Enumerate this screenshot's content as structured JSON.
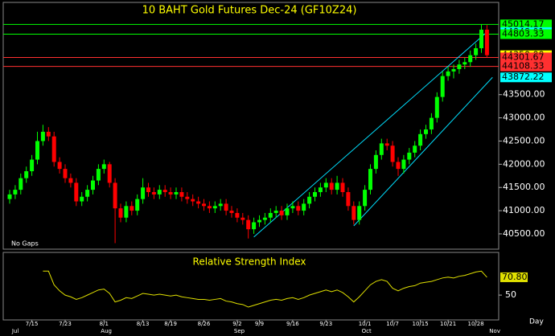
{
  "chart_data": {
    "type": "candlestick",
    "title": "10 BAHT Gold Futures Dec-24 (GF10Z24)",
    "note": "No Gaps",
    "period": "Day",
    "up_color": "#00ff00",
    "down_color": "#ff0000",
    "ylim": [
      40170,
      45470
    ],
    "yticks": [
      {
        "value": 40500,
        "label": "40500.00"
      },
      {
        "value": 41000,
        "label": "41000.00"
      },
      {
        "value": 41500,
        "label": "41500.00"
      },
      {
        "value": 42000,
        "label": "42000.00"
      },
      {
        "value": 42500,
        "label": "42500.00"
      },
      {
        "value": 43000,
        "label": "43000.00"
      },
      {
        "value": 43500,
        "label": "43500.00"
      }
    ],
    "categories": [
      null,
      null,
      null,
      null,
      "7/15",
      null,
      null,
      null,
      null,
      null,
      "7/23",
      null,
      null,
      null,
      null,
      null,
      null,
      "8/1",
      null,
      null,
      null,
      null,
      null,
      null,
      "8/13",
      null,
      null,
      null,
      null,
      "8/19",
      null,
      null,
      null,
      null,
      null,
      "8/26",
      null,
      null,
      null,
      null,
      null,
      "9/2",
      null,
      null,
      null,
      "9/9",
      null,
      null,
      null,
      null,
      null,
      "9/16",
      null,
      null,
      null,
      null,
      null,
      "9/23",
      null,
      null,
      null,
      null,
      null,
      null,
      "10/1",
      null,
      null,
      null,
      null,
      "10/7",
      null,
      null,
      null,
      null,
      "10/15",
      null,
      null,
      null,
      null,
      "10/21",
      null,
      null,
      null,
      null,
      "10/28",
      null,
      null
    ],
    "month_labels": [
      {
        "label": "Jul",
        "index": 1
      },
      {
        "label": "Aug",
        "index": 17
      },
      {
        "label": "Sep",
        "index": 41
      },
      {
        "label": "Oct",
        "index": 64
      },
      {
        "label": "Nov",
        "index": 87
      }
    ],
    "ohlc": [
      [
        41250,
        41450,
        41150,
        41350
      ],
      [
        41350,
        41550,
        41250,
        41450
      ],
      [
        41450,
        41800,
        41350,
        41700
      ],
      [
        41700,
        41950,
        41600,
        41850
      ],
      [
        41850,
        42200,
        41750,
        42100
      ],
      [
        42100,
        42700,
        42000,
        42500
      ],
      [
        42500,
        42850,
        42400,
        42700
      ],
      [
        42700,
        42800,
        42500,
        42600
      ],
      [
        42600,
        42700,
        41950,
        42050
      ],
      [
        42050,
        42150,
        41800,
        41900
      ],
      [
        41900,
        42000,
        41600,
        41700
      ],
      [
        41700,
        41800,
        41500,
        41600
      ],
      [
        41600,
        41700,
        41100,
        41200
      ],
      [
        41200,
        41400,
        41100,
        41300
      ],
      [
        41300,
        41550,
        41200,
        41450
      ],
      [
        41450,
        41750,
        41350,
        41650
      ],
      [
        41650,
        42000,
        41550,
        41900
      ],
      [
        41900,
        42100,
        41800,
        42000
      ],
      [
        42000,
        42050,
        41500,
        41600
      ],
      [
        41600,
        41700,
        40300,
        41050
      ],
      [
        41050,
        41150,
        40750,
        40850
      ],
      [
        40850,
        41200,
        40750,
        41100
      ],
      [
        41100,
        41200,
        40900,
        41000
      ],
      [
        41000,
        41350,
        40900,
        41250
      ],
      [
        41250,
        41700,
        41150,
        41500
      ],
      [
        41500,
        41600,
        41300,
        41400
      ],
      [
        41400,
        41500,
        41250,
        41350
      ],
      [
        41350,
        41550,
        41250,
        41450
      ],
      [
        41450,
        41550,
        41300,
        41400
      ],
      [
        41400,
        41500,
        41250,
        41350
      ],
      [
        41350,
        41500,
        41250,
        41400
      ],
      [
        41400,
        41500,
        41200,
        41300
      ],
      [
        41300,
        41400,
        41150,
        41250
      ],
      [
        41250,
        41350,
        41100,
        41200
      ],
      [
        41200,
        41300,
        41050,
        41150
      ],
      [
        41150,
        41250,
        41000,
        41100
      ],
      [
        41100,
        41200,
        40950,
        41050
      ],
      [
        41050,
        41200,
        40950,
        41100
      ],
      [
        41100,
        41250,
        41000,
        41150
      ],
      [
        41150,
        41250,
        40900,
        41000
      ],
      [
        41000,
        41100,
        40850,
        40950
      ],
      [
        40950,
        41050,
        40750,
        40850
      ],
      [
        40850,
        40950,
        40700,
        40800
      ],
      [
        40800,
        40900,
        40400,
        40600
      ],
      [
        40600,
        40850,
        40500,
        40750
      ],
      [
        40750,
        40900,
        40650,
        40800
      ],
      [
        40800,
        40950,
        40700,
        40850
      ],
      [
        40850,
        41050,
        40750,
        40950
      ],
      [
        40950,
        41100,
        40850,
        41000
      ],
      [
        41000,
        41100,
        40800,
        40900
      ],
      [
        40900,
        41150,
        40800,
        41050
      ],
      [
        41050,
        41200,
        40950,
        41100
      ],
      [
        41100,
        41200,
        40900,
        41000
      ],
      [
        41000,
        41250,
        40900,
        41150
      ],
      [
        41150,
        41400,
        41050,
        41300
      ],
      [
        41300,
        41500,
        41200,
        41400
      ],
      [
        41400,
        41600,
        41300,
        41500
      ],
      [
        41500,
        41700,
        41400,
        41600
      ],
      [
        41600,
        41700,
        41350,
        41450
      ],
      [
        41450,
        41750,
        41350,
        41600
      ],
      [
        41600,
        41700,
        41300,
        41400
      ],
      [
        41400,
        41500,
        41000,
        41100
      ],
      [
        41100,
        41200,
        40700,
        40800
      ],
      [
        40800,
        41200,
        40700,
        41100
      ],
      [
        41100,
        41550,
        41000,
        41450
      ],
      [
        41450,
        42000,
        41350,
        41900
      ],
      [
        41900,
        42300,
        41800,
        42200
      ],
      [
        42200,
        42550,
        42100,
        42450
      ],
      [
        42450,
        42550,
        42300,
        42400
      ],
      [
        42400,
        42500,
        41950,
        42050
      ],
      [
        42050,
        42150,
        41750,
        41900
      ],
      [
        41900,
        42200,
        41800,
        42100
      ],
      [
        42100,
        42350,
        42000,
        42250
      ],
      [
        42250,
        42500,
        42150,
        42400
      ],
      [
        42400,
        42750,
        42300,
        42650
      ],
      [
        42650,
        42850,
        42550,
        42750
      ],
      [
        42750,
        43100,
        42650,
        43000
      ],
      [
        43000,
        43550,
        42900,
        43450
      ],
      [
        43450,
        44000,
        43350,
        43900
      ],
      [
        43900,
        44100,
        43800,
        44000
      ],
      [
        44000,
        44150,
        43850,
        44050
      ],
      [
        44050,
        44250,
        43950,
        44150
      ],
      [
        44150,
        44300,
        44050,
        44200
      ],
      [
        44200,
        44450,
        44100,
        44350
      ],
      [
        44350,
        44600,
        44250,
        44500
      ],
      [
        44500,
        45014.17,
        44400,
        44900
      ],
      [
        44900,
        45000,
        44301.67,
        44350
      ]
    ],
    "price_levels": [
      {
        "value": 45014.17,
        "label": "45014.17",
        "color": "#00ff00",
        "line": true
      },
      {
        "value": 44848.01,
        "label": "44848.01",
        "color": "#00ffff",
        "line": false
      },
      {
        "value": 44803.33,
        "label": "44803.33",
        "color": "#00ff00",
        "line": true
      },
      {
        "value": 44350,
        "label": "44350.00",
        "color": "#ffff00",
        "line": false
      },
      {
        "value": 44301.67,
        "label": "44301.67",
        "color": "#ff3030",
        "line": true
      },
      {
        "value": 44108.33,
        "label": "44108.33",
        "color": "#ff3030",
        "line": true
      },
      {
        "value": 43872.22,
        "label": "43872.22",
        "color": "#00ffff",
        "line": false
      }
    ],
    "trend_lines": [
      {
        "color": "#00e0ff",
        "start": [
          44,
          40431
        ],
        "end": [
          86,
          44848.01
        ]
      },
      {
        "color": "#00e0ff",
        "start": [
          62,
          40672
        ],
        "end": [
          87,
          43872.22
        ]
      }
    ],
    "rsi": {
      "title": "Relative Strength Index",
      "color": "#e0e000",
      "ylim": [
        21,
        98
      ],
      "yticks": [
        50
      ],
      "values": [
        null,
        null,
        null,
        null,
        null,
        null,
        78,
        78,
        62,
        55,
        50,
        48,
        45,
        47,
        50,
        53,
        56,
        57,
        52,
        42,
        44,
        47,
        46,
        49,
        52,
        51,
        50,
        51,
        50,
        49,
        50,
        48,
        47,
        46,
        45,
        45,
        44,
        45,
        46,
        43,
        42,
        40,
        39,
        36,
        38,
        40,
        42,
        44,
        45,
        44,
        46,
        47,
        45,
        47,
        50,
        52,
        54,
        56,
        54,
        56,
        53,
        48,
        42,
        48,
        55,
        62,
        66,
        68,
        66,
        58,
        55,
        58,
        60,
        61,
        64,
        65,
        66,
        68,
        70,
        71,
        70,
        72,
        73,
        75,
        77,
        78,
        70.8
      ],
      "value_labels": [
        null,
        null,
        null,
        null,
        null,
        null,
        null,
        null,
        null,
        null,
        null,
        null,
        null,
        null,
        null,
        null,
        null,
        null,
        null,
        null,
        null,
        null,
        null,
        null,
        null,
        null,
        null,
        null,
        null,
        null,
        null,
        null,
        null,
        null,
        null,
        null,
        null,
        null,
        null,
        null,
        null,
        null,
        null,
        null,
        null,
        null,
        null,
        null,
        null,
        null,
        null,
        null,
        null,
        null,
        null,
        null,
        null,
        null,
        null,
        null,
        null,
        null,
        null,
        null,
        null,
        null,
        null,
        null,
        null,
        null,
        null,
        null,
        null,
        null,
        null,
        null,
        null,
        null,
        null,
        null,
        null,
        null,
        null,
        null,
        null,
        null,
        "70.80"
      ]
    }
  }
}
